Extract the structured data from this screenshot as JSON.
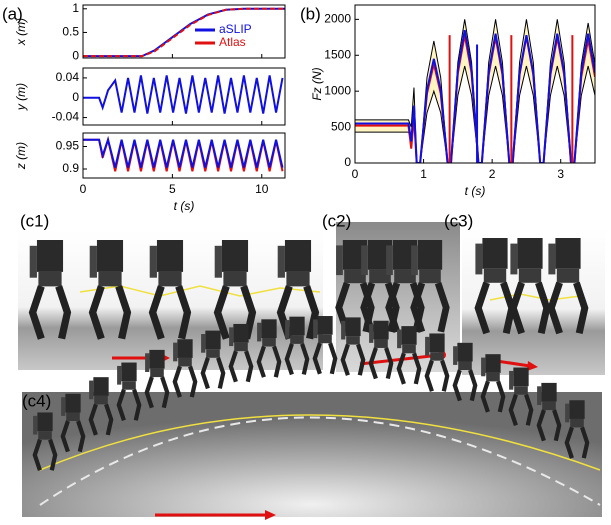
{
  "panel_labels": [
    "(a)",
    "(b)"
  ],
  "photo_labels": [
    "(c1)",
    "(c2)",
    "(c3)",
    "(c4)"
  ],
  "chart_data": [
    {
      "type": "line",
      "ylabel": "x (m)",
      "xlim": [
        0,
        11.3
      ],
      "xticks": [
        0,
        5,
        10
      ],
      "ylim": [
        -0.04,
        1.08
      ],
      "yticks": [
        0,
        0.5,
        1
      ],
      "legend": "lower right",
      "x": [
        0,
        3.3,
        4,
        5,
        6,
        7,
        8,
        9,
        11.3
      ],
      "series": [
        {
          "name": "aSLIP",
          "color": "#1010e0",
          "values": [
            0,
            0,
            0.12,
            0.4,
            0.68,
            0.88,
            0.98,
            1,
            1
          ]
        },
        {
          "name": "Atlas",
          "color": "#e01010",
          "dashed": true,
          "values": [
            0,
            0,
            0.1,
            0.38,
            0.66,
            0.87,
            0.98,
            1,
            1
          ]
        }
      ]
    },
    {
      "type": "line",
      "ylabel": "y (m)",
      "xlim": [
        0,
        11.3
      ],
      "xticks": [
        0,
        5,
        10
      ],
      "ylim": [
        -0.055,
        0.06
      ],
      "yticks": [
        -0.04,
        0,
        0.04
      ],
      "x": [
        0,
        0.9,
        1.1,
        1.4,
        1.8,
        2.16,
        2.52,
        2.88,
        3.24,
        3.6,
        3.96,
        4.32,
        4.68,
        5.04,
        5.4,
        5.76,
        6.12,
        6.48,
        6.84,
        7.2,
        7.56,
        7.92,
        8.28,
        8.64,
        9,
        9.36,
        9.72,
        10.08,
        10.44,
        10.8,
        11.16
      ],
      "series": [
        {
          "color": "#1010e0",
          "values": [
            0,
            0,
            -0.02,
            0.015,
            0.035,
            -0.03,
            0.04,
            -0.03,
            0.045,
            -0.032,
            0.04,
            -0.03,
            0.045,
            -0.03,
            0.04,
            -0.032,
            0.045,
            -0.03,
            0.04,
            -0.03,
            0.045,
            -0.032,
            0.04,
            -0.03,
            0.045,
            -0.03,
            0.04,
            -0.032,
            0.045,
            -0.03,
            0.04
          ]
        }
      ]
    },
    {
      "type": "line",
      "ylabel": "z (m)",
      "xlabel": "t (s)",
      "xlim": [
        0,
        11.3
      ],
      "xticks": [
        0,
        5,
        10
      ],
      "ylim": [
        0.88,
        0.98
      ],
      "yticks": [
        0.9,
        0.95
      ],
      "x": [
        0,
        0.9,
        1.1,
        1.4,
        1.8,
        2.16,
        2.52,
        2.88,
        3.24,
        3.6,
        3.96,
        4.32,
        4.68,
        5.04,
        5.4,
        5.76,
        6.12,
        6.48,
        6.84,
        7.2,
        7.56,
        7.92,
        8.28,
        8.64,
        9,
        9.36,
        9.72,
        10.08,
        10.44,
        10.8,
        11.16
      ],
      "series": [
        {
          "color": "#e01010",
          "values": [
            0.965,
            0.965,
            0.925,
            0.965,
            0.895,
            0.963,
            0.895,
            0.963,
            0.895,
            0.963,
            0.895,
            0.963,
            0.895,
            0.963,
            0.895,
            0.963,
            0.895,
            0.963,
            0.895,
            0.963,
            0.895,
            0.963,
            0.895,
            0.963,
            0.895,
            0.963,
            0.895,
            0.963,
            0.895,
            0.963,
            0.895
          ]
        },
        {
          "color": "#1010e0",
          "values": [
            0.965,
            0.965,
            0.93,
            0.965,
            0.903,
            0.965,
            0.903,
            0.965,
            0.903,
            0.965,
            0.903,
            0.965,
            0.903,
            0.965,
            0.903,
            0.965,
            0.903,
            0.965,
            0.903,
            0.965,
            0.903,
            0.965,
            0.903,
            0.965,
            0.903,
            0.965,
            0.903,
            0.965,
            0.903,
            0.965,
            0.903
          ]
        }
      ]
    },
    {
      "type": "line",
      "ylabel": "Fz (N)",
      "xlabel": "t (s)",
      "xlim": [
        0,
        3.5
      ],
      "xticks": [
        0,
        1,
        2,
        3
      ],
      "ylim": [
        0,
        2200
      ],
      "yticks": [
        0,
        500,
        1000,
        1500,
        2000
      ],
      "x": [
        0,
        0.78,
        0.82,
        0.86,
        0.9,
        0.95,
        1.05,
        1.15,
        1.25,
        1.35,
        1.4,
        1.5,
        1.6,
        1.7,
        1.8,
        1.85,
        1.95,
        2.05,
        2.15,
        2.25,
        2.3,
        2.4,
        2.5,
        2.6,
        2.7,
        2.75,
        2.85,
        2.95,
        3.05,
        3.15,
        3.2,
        3.3,
        3.4,
        3.5
      ],
      "band": {
        "color": "#fff4c2",
        "line_color": "#000000",
        "upper": [
          600,
          600,
          500,
          1050,
          0,
          0,
          1190,
          1700,
          1190,
          0,
          0,
          1400,
          2000,
          1400,
          0,
          0,
          1400,
          2000,
          1400,
          0,
          0,
          1400,
          2000,
          1400,
          0,
          0,
          1400,
          2000,
          1400,
          0,
          0,
          1370,
          1950,
          1370
        ],
        "lower": [
          430,
          430,
          300,
          600,
          0,
          0,
          700,
          1000,
          700,
          0,
          0,
          940,
          1350,
          940,
          0,
          0,
          940,
          1350,
          940,
          0,
          0,
          940,
          1350,
          940,
          0,
          0,
          940,
          1350,
          940,
          0,
          0,
          940,
          1350,
          940
        ]
      },
      "series": [
        {
          "color": "#e01010",
          "values": [
            520,
            520,
            200,
            650,
            0,
            0,
            970,
            1380,
            970,
            0,
            0,
            1250,
            1780,
            1250,
            0,
            0,
            1230,
            1750,
            1230,
            0,
            0,
            1230,
            1760,
            1230,
            0,
            0,
            1230,
            1750,
            1230,
            0,
            0,
            1200,
            1720,
            1200
          ]
        },
        {
          "color": "#1010e0",
          "values": [
            550,
            550,
            300,
            800,
            0,
            0,
            1015,
            1450,
            1015,
            0,
            0,
            1300,
            1850,
            1300,
            0,
            0,
            1260,
            1800,
            1260,
            0,
            0,
            1250,
            1780,
            1250,
            0,
            0,
            1260,
            1800,
            1260,
            0,
            0,
            1260,
            1800,
            1260
          ]
        }
      ],
      "impulses": [
        {
          "color": "#e01010",
          "x": [
            1.38,
            2.28,
            3.17
          ],
          "values": [
            1780,
            1780,
            1780
          ]
        },
        {
          "color": "#1010e0",
          "x": [
            1.78
          ],
          "values": [
            1650
          ]
        }
      ]
    }
  ]
}
